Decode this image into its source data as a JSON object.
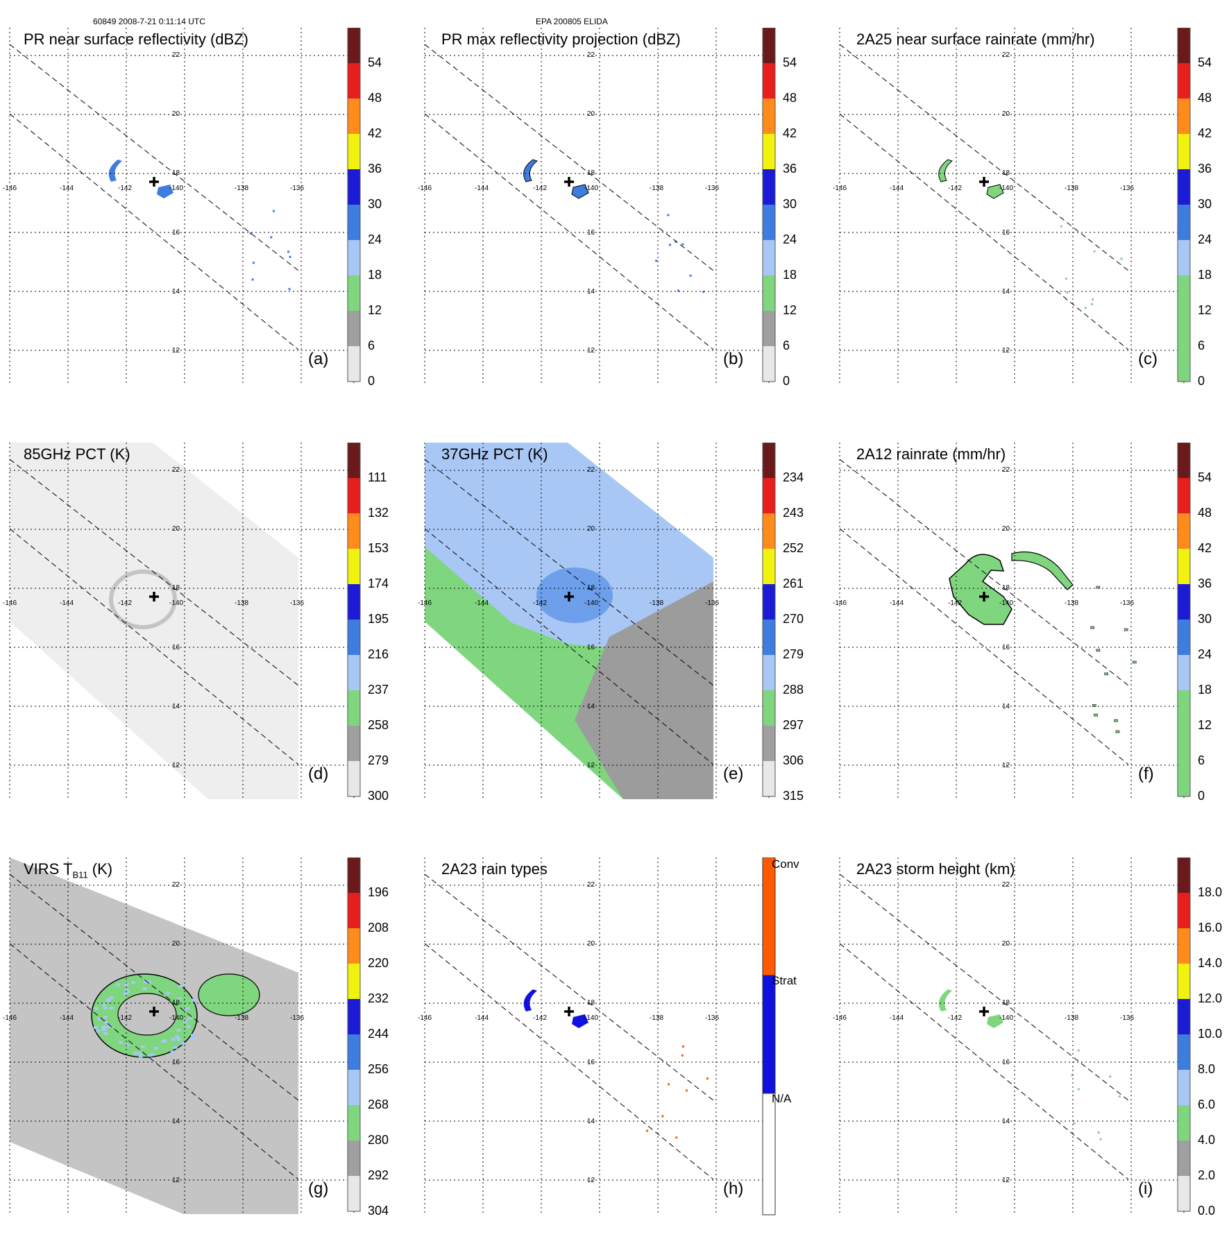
{
  "header": {
    "orbit_time": "60849 2008-7-21 0:11:14 UTC",
    "storm": "EPA 200805 ELIDA"
  },
  "colors": {
    "grid": "#000000",
    "swath_edge": "#000000",
    "center_marker": "#000000",
    "green": "#7fd67f",
    "blue_light": "#a9c7f5",
    "blue": "#3d7de0",
    "blue_dark": "#1b1bd6",
    "yellow": "#f2f20f",
    "orange": "#ff8c1a",
    "red": "#e81e1e",
    "dark_red": "#6a1a1a",
    "gray": "#a0a0a0",
    "conv": "#ff5a00",
    "strat": "#1010e0"
  },
  "map": {
    "lon_labels": [
      "-146",
      "-144",
      "-142",
      "-140",
      "-138",
      "-136"
    ],
    "lat_labels": [
      "22",
      "20",
      "18",
      "16",
      "14",
      "12"
    ],
    "center_marker": "+"
  },
  "panels": [
    {
      "id": "a",
      "title": "PR near surface reflectivity (dBZ)",
      "label": "(a)",
      "colorbar_ticks": [
        "54",
        "48",
        "42",
        "36",
        "30",
        "24",
        "18",
        "12",
        "6",
        "0"
      ]
    },
    {
      "id": "b",
      "title": "PR max reflectivity projection (dBZ)",
      "label": "(b)",
      "colorbar_ticks": [
        "54",
        "48",
        "42",
        "36",
        "30",
        "24",
        "18",
        "12",
        "6",
        "0"
      ]
    },
    {
      "id": "c",
      "title": "2A25 near surface rainrate (mm/hr)",
      "label": "(c)",
      "colorbar_ticks": [
        "54",
        "48",
        "42",
        "36",
        "30",
        "24",
        "18",
        "12",
        "6",
        "0"
      ]
    },
    {
      "id": "d",
      "title": "85GHz PCT (K)",
      "label": "(d)",
      "colorbar_ticks": [
        "111",
        "132",
        "153",
        "174",
        "195",
        "216",
        "237",
        "258",
        "279",
        "300"
      ]
    },
    {
      "id": "e",
      "title": "37GHz PCT (K)",
      "label": "(e)",
      "colorbar_ticks": [
        "234",
        "243",
        "252",
        "261",
        "270",
        "279",
        "288",
        "297",
        "306",
        "315"
      ]
    },
    {
      "id": "f",
      "title": "2A12 rainrate (mm/hr)",
      "label": "(f)",
      "colorbar_ticks": [
        "54",
        "48",
        "42",
        "36",
        "30",
        "24",
        "18",
        "12",
        "6",
        "0"
      ]
    },
    {
      "id": "g",
      "title_main": "VIRS T",
      "title_sub": "B11",
      "title_unit": " (K)",
      "label": "(g)",
      "colorbar_ticks": [
        "196",
        "208",
        "220",
        "232",
        "244",
        "256",
        "268",
        "280",
        "292",
        "304"
      ]
    },
    {
      "id": "h",
      "title": "2A23 rain types",
      "label": "(h)",
      "colorbar_ticks": [
        "Conv",
        "Strat",
        "N/A"
      ]
    },
    {
      "id": "i",
      "title": "2A23 storm height (km)",
      "label": "(i)",
      "colorbar_ticks": [
        "18.0",
        "16.0",
        "14.0",
        "12.0",
        "10.0",
        "8.0",
        "6.0",
        "4.0",
        "2.0",
        "0.0"
      ]
    }
  ]
}
